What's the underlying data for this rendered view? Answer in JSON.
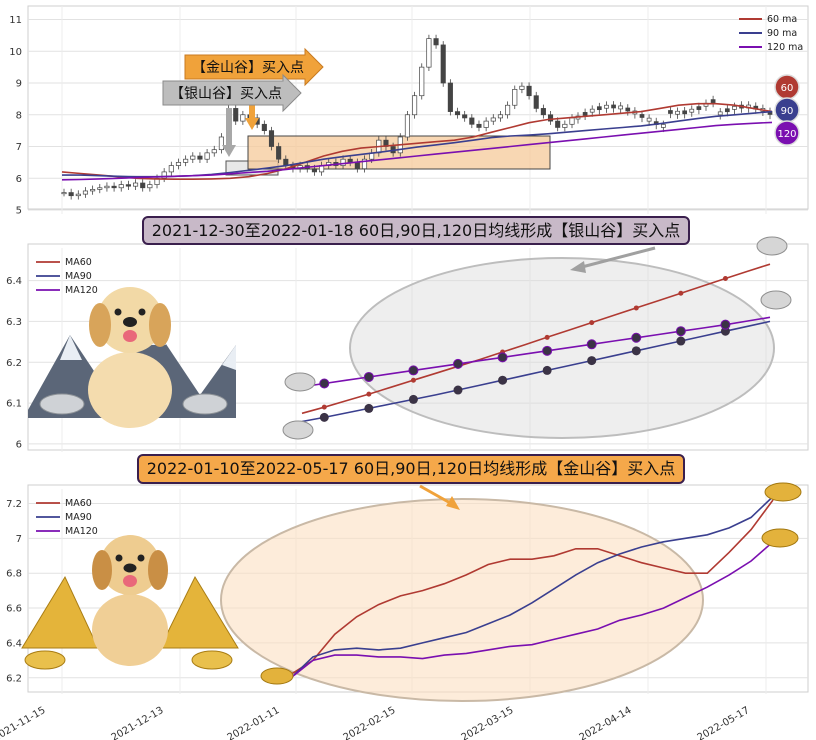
{
  "top_panel": {
    "arrows": {
      "jin": "【金山谷】买入点",
      "yin": "【银山谷】买入点"
    },
    "badges": [
      "60",
      "90",
      "120"
    ]
  },
  "banners": {
    "mid": "2021-12-30至2022-01-18 60日,90日,120日均线形成【银山谷】买入点",
    "bottom": "2022-01-10至2022-05-17 60日,90日,120日均线形成【金山谷】买入点"
  },
  "colors": {
    "ma60": "#b03a32",
    "ma90": "#3a3f8f",
    "ma120": "#7a0fb0",
    "orange_fill": "#f6c99a",
    "silver_fill": "#d8d8d8",
    "gold_arrow": "#f0a23a"
  },
  "chart_data": [
    {
      "type": "candlestick",
      "x_ticks": [],
      "y_ticks": [
        5,
        6,
        7,
        8,
        9,
        10,
        11
      ],
      "ylim": [
        5,
        11.3
      ],
      "legend": [
        "60 ma",
        "90 ma",
        "120 ma"
      ],
      "legend_position": "top-right",
      "grid": true,
      "close": [
        5.55,
        5.45,
        5.5,
        5.6,
        5.65,
        5.7,
        5.75,
        5.7,
        5.8,
        5.75,
        5.85,
        5.7,
        5.8,
        6.0,
        6.2,
        6.4,
        6.5,
        6.6,
        6.7,
        6.6,
        6.8,
        6.9,
        7.3,
        8.2,
        7.8,
        8.0,
        7.9,
        7.7,
        7.5,
        7.0,
        6.6,
        6.4,
        6.3,
        6.4,
        6.3,
        6.2,
        6.4,
        6.5,
        6.4,
        6.6,
        6.5,
        6.3,
        6.6,
        6.8,
        7.2,
        7.0,
        6.8,
        7.3,
        8.0,
        8.6,
        9.5,
        10.4,
        10.2,
        9.0,
        8.1,
        8.0,
        7.9,
        7.7,
        7.6,
        7.8,
        7.9,
        8.0,
        8.3,
        8.8,
        8.9,
        8.6,
        8.2,
        8.0,
        7.8,
        7.6,
        7.7,
        7.9
      ],
      "series": [
        {
          "name": "60 ma",
          "values": [
            6.2,
            6.15,
            6.1,
            6.05,
            6.0,
            5.98,
            5.97,
            5.97,
            5.98,
            6.0,
            6.05,
            6.15,
            6.3,
            6.5,
            6.7,
            6.85,
            6.95,
            7.0,
            7.05,
            7.1,
            7.15,
            7.2,
            7.3,
            7.45,
            7.6,
            7.75,
            7.85,
            7.9,
            7.95,
            8.0,
            8.05,
            8.1,
            8.2,
            8.3,
            8.35,
            8.35,
            8.3,
            8.2,
            8.1
          ]
        },
        {
          "name": "90 ma",
          "values": [
            6.1,
            6.1,
            6.08,
            6.06,
            6.05,
            6.05,
            6.06,
            6.08,
            6.12,
            6.18,
            6.25,
            6.32,
            6.4,
            6.5,
            6.6,
            6.68,
            6.75,
            6.82,
            6.9,
            6.98,
            7.05,
            7.12,
            7.2,
            7.28,
            7.33,
            7.36,
            7.4,
            7.45,
            7.5,
            7.55,
            7.6,
            7.65,
            7.72,
            7.8,
            7.88,
            7.95,
            8.0,
            8.05,
            8.1
          ]
        },
        {
          "name": "120 ma",
          "values": [
            5.95,
            5.96,
            5.98,
            6.0,
            6.02,
            6.04,
            6.06,
            6.08,
            6.1,
            6.14,
            6.18,
            6.22,
            6.28,
            6.34,
            6.4,
            6.46,
            6.52,
            6.58,
            6.64,
            6.7,
            6.76,
            6.82,
            6.88,
            6.94,
            7.0,
            7.06,
            7.12,
            7.18,
            7.24,
            7.3,
            7.36,
            7.42,
            7.48,
            7.54,
            7.6,
            7.66,
            7.7,
            7.73,
            7.76
          ]
        }
      ]
    },
    {
      "type": "line",
      "y_ticks": [
        6.0,
        6.1,
        6.2,
        6.3,
        6.4
      ],
      "ylim": [
        5.99,
        6.47
      ],
      "legend_position": "top-left",
      "grid": true,
      "series": [
        {
          "name": "MA60",
          "values": [
            6.075,
            6.09,
            6.106,
            6.122,
            6.139,
            6.156,
            6.173,
            6.19,
            6.207,
            6.225,
            6.243,
            6.261,
            6.279,
            6.297,
            6.315,
            6.333,
            6.351,
            6.369,
            6.387,
            6.405,
            6.423,
            6.44
          ]
        },
        {
          "name": "MA90",
          "values": [
            6.055,
            6.065,
            6.076,
            6.087,
            6.098,
            6.109,
            6.12,
            6.132,
            6.144,
            6.156,
            6.168,
            6.18,
            6.192,
            6.204,
            6.216,
            6.228,
            6.24,
            6.252,
            6.264,
            6.276,
            6.288,
            6.3
          ]
        },
        {
          "name": "MA120",
          "values": [
            6.14,
            6.148,
            6.156,
            6.164,
            6.172,
            6.18,
            6.188,
            6.196,
            6.204,
            6.212,
            6.22,
            6.228,
            6.236,
            6.244,
            6.252,
            6.26,
            6.268,
            6.276,
            6.284,
            6.292,
            6.301,
            6.31
          ]
        }
      ]
    },
    {
      "type": "line",
      "x_ticks": [
        "2021-11-15",
        "2021-12-13",
        "2022-01-11",
        "2022-02-15",
        "2022-03-15",
        "2022-04-14",
        "2022-05-17"
      ],
      "y_ticks": [
        6.2,
        6.4,
        6.6,
        6.8,
        7.0,
        7.2
      ],
      "ylim": [
        6.13,
        7.26
      ],
      "legend_position": "top-left",
      "grid": true,
      "series": [
        {
          "name": "MA60",
          "values": [
            6.22,
            6.3,
            6.45,
            6.55,
            6.62,
            6.67,
            6.7,
            6.74,
            6.79,
            6.85,
            6.88,
            6.88,
            6.9,
            6.94,
            6.94,
            6.9,
            6.86,
            6.83,
            6.8,
            6.8,
            6.92,
            7.05,
            7.22
          ]
        },
        {
          "name": "MA90",
          "values": [
            6.2,
            6.32,
            6.36,
            6.37,
            6.36,
            6.37,
            6.4,
            6.43,
            6.46,
            6.51,
            6.56,
            6.63,
            6.71,
            6.79,
            6.86,
            6.91,
            6.95,
            6.98,
            7.0,
            7.02,
            7.06,
            7.12,
            7.24
          ]
        },
        {
          "name": "MA120",
          "values": [
            6.2,
            6.3,
            6.33,
            6.33,
            6.32,
            6.32,
            6.31,
            6.33,
            6.34,
            6.36,
            6.38,
            6.39,
            6.42,
            6.45,
            6.48,
            6.53,
            6.56,
            6.6,
            6.66,
            6.72,
            6.79,
            6.87,
            6.98
          ]
        }
      ]
    }
  ]
}
